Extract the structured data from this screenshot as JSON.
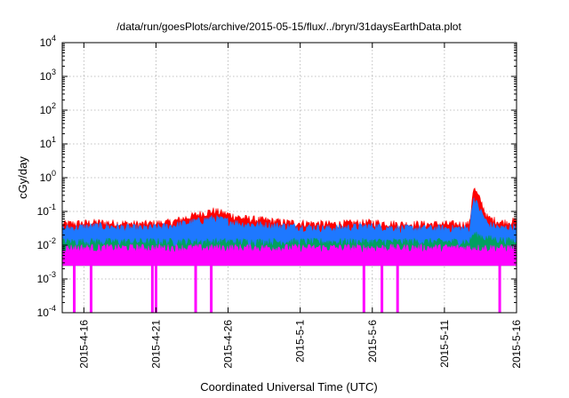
{
  "chart_data": {
    "type": "area",
    "title": "/data/run/goesPlots/archive/2015-05-15/flux/../bryn/31daysEarthData.plot",
    "xlabel": "Coordinated Universal Time (UTC)",
    "ylabel": "cGy/day",
    "yscale": "log",
    "ylim": [
      0.0001,
      10000
    ],
    "xlim": [
      "2015-04-14T12:00",
      "2015-05-16T00:00"
    ],
    "grid": true,
    "y_ticks": [
      {
        "value": 0.0001,
        "base": "10",
        "exp": "-4"
      },
      {
        "value": 0.001,
        "base": "10",
        "exp": "-3"
      },
      {
        "value": 0.01,
        "base": "10",
        "exp": "-2"
      },
      {
        "value": 0.1,
        "base": "10",
        "exp": "-1"
      },
      {
        "value": 1,
        "base": "10",
        "exp": "0"
      },
      {
        "value": 10,
        "base": "10",
        "exp": "1"
      },
      {
        "value": 100,
        "base": "10",
        "exp": "2"
      },
      {
        "value": 1000,
        "base": "10",
        "exp": "3"
      },
      {
        "value": 10000,
        "base": "10",
        "exp": "4"
      }
    ],
    "x_ticks": [
      {
        "date": "2015-04-16",
        "label": "2015-4-16"
      },
      {
        "date": "2015-04-21",
        "label": "2015-4-21"
      },
      {
        "date": "2015-04-26",
        "label": "2015-4-26"
      },
      {
        "date": "2015-05-01",
        "label": "2015-5-1"
      },
      {
        "date": "2015-05-06",
        "label": "2015-5-6"
      },
      {
        "date": "2015-05-11",
        "label": "2015-5-11"
      },
      {
        "date": "2015-05-16",
        "label": "2015-5-16"
      }
    ],
    "series": [
      {
        "color": "#ff0000",
        "x": [
          "2015-04-14T12:00",
          "2015-04-17",
          "2015-04-20",
          "2015-04-22",
          "2015-04-24",
          "2015-04-25",
          "2015-04-27",
          "2015-04-30",
          "2015-05-03",
          "2015-05-06",
          "2015-05-08",
          "2015-05-11",
          "2015-05-12T18:00",
          "2015-05-13",
          "2015-05-13T12:00",
          "2015-05-14",
          "2015-05-15",
          "2015-05-16"
        ],
        "y": [
          0.04,
          0.045,
          0.04,
          0.045,
          0.08,
          0.1,
          0.06,
          0.045,
          0.04,
          0.045,
          0.04,
          0.04,
          0.04,
          0.5,
          0.2,
          0.06,
          0.045,
          0.05
        ]
      },
      {
        "color": "#1e78ff",
        "x": [
          "2015-04-14T12:00",
          "2015-04-17",
          "2015-04-20",
          "2015-04-22",
          "2015-04-24",
          "2015-04-25",
          "2015-04-27",
          "2015-04-30",
          "2015-05-03",
          "2015-05-06",
          "2015-05-08",
          "2015-05-11",
          "2015-05-12T18:00",
          "2015-05-13",
          "2015-05-13T12:00",
          "2015-05-14",
          "2015-05-15",
          "2015-05-16"
        ],
        "y": [
          0.03,
          0.035,
          0.03,
          0.035,
          0.05,
          0.06,
          0.04,
          0.035,
          0.03,
          0.035,
          0.03,
          0.03,
          0.03,
          0.25,
          0.1,
          0.04,
          0.03,
          0.035
        ]
      },
      {
        "color": "#00a060",
        "x": [
          "2015-04-14T12:00",
          "2015-05-12T18:00",
          "2015-05-13",
          "2015-05-14",
          "2015-05-16"
        ],
        "y": [
          0.012,
          0.012,
          0.02,
          0.015,
          0.012
        ]
      },
      {
        "color": "#ff00ff",
        "x": [
          "2015-04-14T12:00",
          "2015-05-16"
        ],
        "y": [
          0.008,
          0.008
        ]
      }
    ],
    "baseline": 0.0025,
    "dropouts": [
      "2015-04-15T08:00",
      "2015-04-16T12:00",
      "2015-04-20T18:00",
      "2015-04-21T00:00",
      "2015-04-23T18:00",
      "2015-04-24T20:00",
      "2015-05-05T10:00",
      "2015-05-06T16:00",
      "2015-05-07T18:00",
      "2015-05-14T20:00"
    ]
  }
}
